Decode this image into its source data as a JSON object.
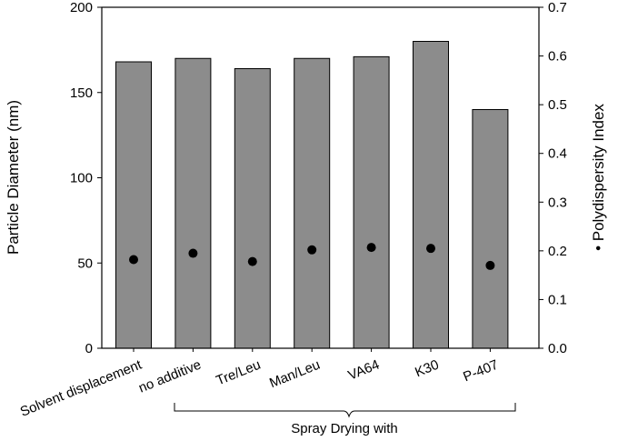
{
  "chart_data": {
    "type": "bar",
    "categories": [
      "Solvent displacement",
      "no additive",
      "Tre/Leu",
      "Man/Leu",
      "VA64",
      "K30",
      "P-407"
    ],
    "series": [
      {
        "type": "bar",
        "axis": "left",
        "values": [
          168,
          170,
          164,
          170,
          171,
          180,
          140
        ]
      },
      {
        "type": "scatter",
        "axis": "right",
        "values": [
          0.182,
          0.195,
          0.178,
          0.202,
          0.207,
          0.205,
          0.17
        ]
      }
    ],
    "ylabel_left": "Particle Diameter (nm)",
    "ylabel_right": "• Polydispersity Index",
    "ylim_left": [
      0,
      200
    ],
    "yticks_left": [
      "0",
      "50",
      "100",
      "150",
      "200"
    ],
    "ylim_right": [
      0,
      0.7
    ],
    "yticks_right": [
      "0.0",
      "0.1",
      "0.2",
      "0.3",
      "0.4",
      "0.5",
      "0.6",
      "0.7"
    ],
    "bracket_label": "Spray Drying with",
    "bracket_categories": [
      "no additive",
      "Tre/Leu",
      "Man/Leu",
      "VA64",
      "K30",
      "P-407"
    ],
    "grid": false,
    "colors": {
      "bar_fill": "#8c8c8c",
      "bar_stroke": "#000000",
      "marker": "#000000"
    }
  }
}
